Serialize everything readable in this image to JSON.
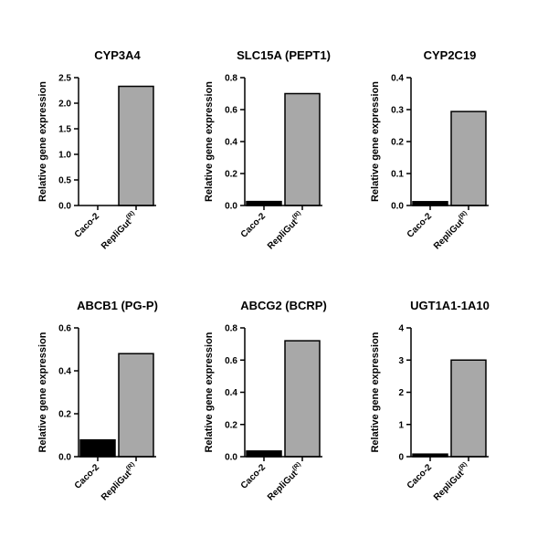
{
  "chart_data": [
    {
      "type": "bar",
      "title": "CYP3A4",
      "ylabel": "Relative gene expression",
      "categories": [
        "Caco-2",
        "RepliGut"
      ],
      "category_superscripts": [
        "",
        "(R)"
      ],
      "values": [
        0,
        2.33
      ],
      "ylim": [
        0,
        2.5
      ],
      "yticks": [
        "0.0",
        "0.5",
        "1.0",
        "1.5",
        "2.0",
        "2.5"
      ],
      "bar_colors": [
        "#000000",
        "#a8a8a8"
      ]
    },
    {
      "type": "bar",
      "title": "SLC15A (PEPT1)",
      "ylabel": "Relative gene expression",
      "categories": [
        "Caco-2",
        "RepliGut"
      ],
      "category_superscripts": [
        "",
        "(R)"
      ],
      "values": [
        0.025,
        0.7
      ],
      "ylim": [
        0,
        0.8
      ],
      "yticks": [
        "0.0",
        "0.2",
        "0.4",
        "0.6",
        "0.8"
      ],
      "bar_colors": [
        "#000000",
        "#a8a8a8"
      ]
    },
    {
      "type": "bar",
      "title": "CYP2C19",
      "ylabel": "Relative gene expression",
      "categories": [
        "Caco-2",
        "RepliGut"
      ],
      "category_superscripts": [
        "",
        "(R)"
      ],
      "values": [
        0.012,
        0.294
      ],
      "ylim": [
        0,
        0.4
      ],
      "yticks": [
        "0.0",
        "0.1",
        "0.2",
        "0.3",
        "0.4"
      ],
      "bar_colors": [
        "#000000",
        "#a8a8a8"
      ]
    },
    {
      "type": "bar",
      "title": "ABCB1 (PG-P)",
      "ylabel": "Relative gene expression",
      "categories": [
        "Caco-2",
        "RepliGut"
      ],
      "category_superscripts": [
        "",
        "(R)"
      ],
      "values": [
        0.078,
        0.48
      ],
      "ylim": [
        0,
        0.6
      ],
      "yticks": [
        "0.0",
        "0.2",
        "0.4",
        "0.6"
      ],
      "bar_colors": [
        "#000000",
        "#a8a8a8"
      ]
    },
    {
      "type": "bar",
      "title": "ABCG2 (BCRP)",
      "ylabel": "Relative gene expression",
      "categories": [
        "Caco-2",
        "RepliGut"
      ],
      "category_superscripts": [
        "",
        "(R)"
      ],
      "values": [
        0.035,
        0.72
      ],
      "ylim": [
        0,
        0.8
      ],
      "yticks": [
        "0.0",
        "0.2",
        "0.4",
        "0.6",
        "0.8"
      ],
      "bar_colors": [
        "#000000",
        "#a8a8a8"
      ]
    },
    {
      "type": "bar",
      "title": "UGT1A1-1A10",
      "ylabel": "Relative gene expression",
      "categories": [
        "Caco-2",
        "RepliGut"
      ],
      "category_superscripts": [
        "",
        "(R)"
      ],
      "values": [
        0.08,
        3.0
      ],
      "ylim": [
        0,
        4
      ],
      "yticks": [
        "0",
        "1",
        "2",
        "3",
        "4"
      ],
      "bar_colors": [
        "#000000",
        "#a8a8a8"
      ]
    }
  ]
}
